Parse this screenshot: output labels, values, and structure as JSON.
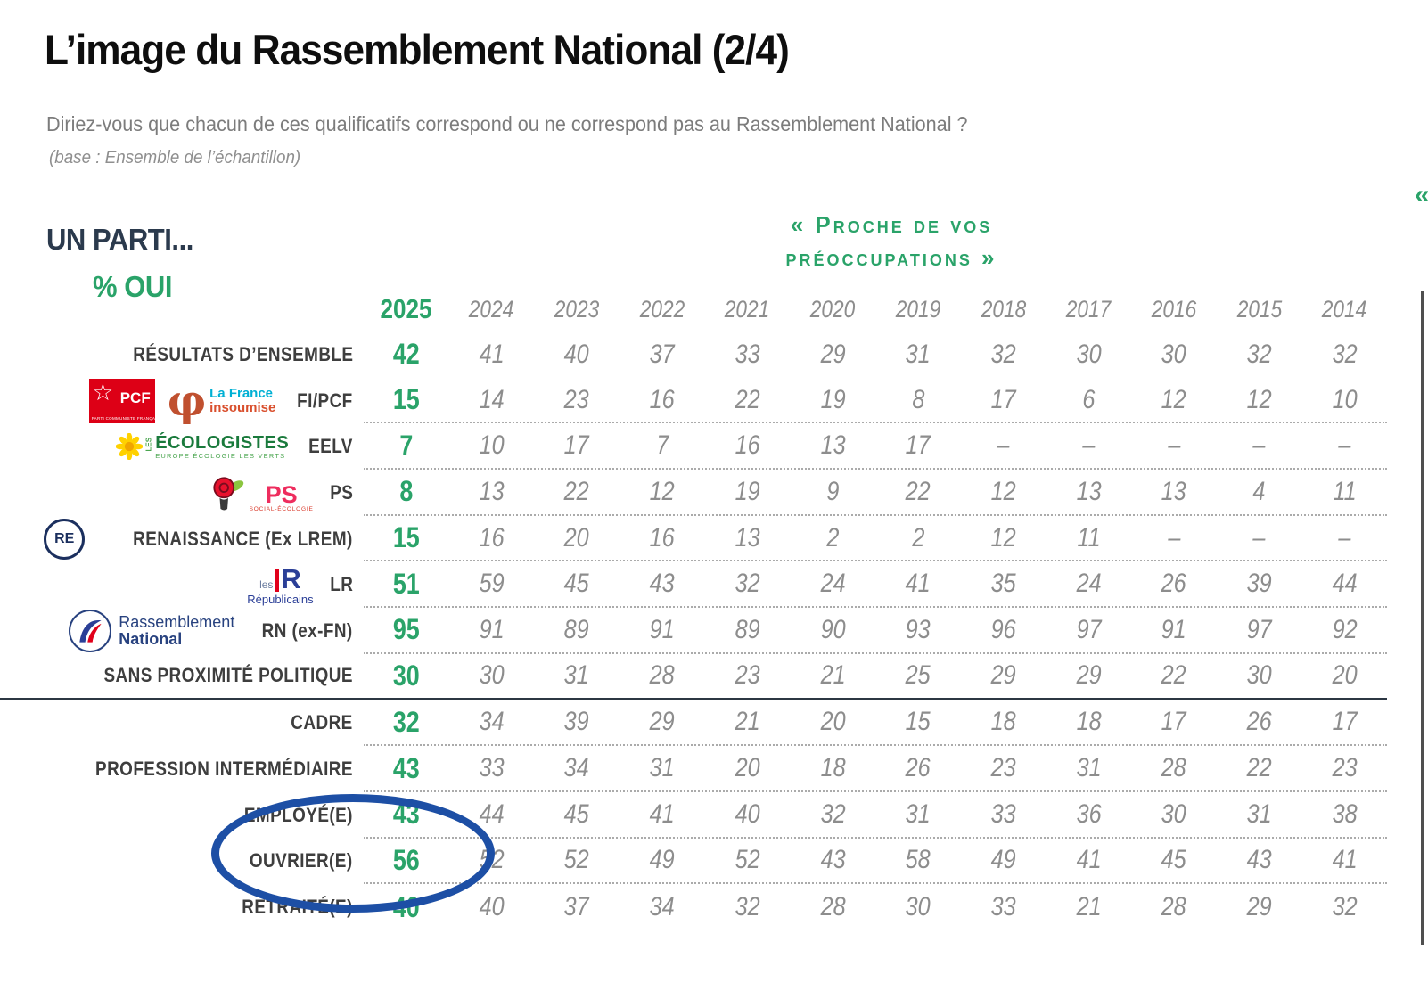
{
  "header": {
    "title": "L’image du Rassemblement National (2/4)",
    "subtitle": "Diriez-vous que chacun de ces qualificatifs correspond ou ne correspond pas au Rassemblement National ?",
    "base_note": "(base : Ensemble de l’échantillon)"
  },
  "panel": {
    "left_label": "UN PARTI...",
    "unit_label": "% OUI",
    "quote_line1": "« Proche de vos",
    "quote_line2": "préoccupations »",
    "next_panel_quote_marker": "«"
  },
  "colors": {
    "accent_green": "#2aa369",
    "value_gray": "#8d8d8d",
    "label_dark": "#3e3e3e",
    "navy": "#2b3a4d",
    "highlight_blue": "#1d4fa5"
  },
  "logos": {
    "pcf": {
      "star": "☆",
      "name": "PCF",
      "sub": "PARTI COMMUNISTE FRANÇAIS"
    },
    "lfi": {
      "phi": "φ",
      "line1": "La France",
      "line2": "insoumise"
    },
    "ecologistes": {
      "les": "LES",
      "name": "ÉCOLOGISTES",
      "sub": "EUROPE ÉCOLOGIE LES VERTS"
    },
    "ps": {
      "name": "PS",
      "sub": "SOCIAL-ÉCOLOGIE"
    },
    "re": {
      "name": "RE"
    },
    "lr": {
      "les": "les",
      "r": "R",
      "name": "Républicains"
    },
    "rn": {
      "line1": "Rassemblement",
      "line2": "National"
    }
  },
  "chart_data": {
    "type": "table",
    "title": "L’image du Rassemblement National (2/4)",
    "question": "Diriez-vous que chacun de ces qualificatifs correspond ou ne correspond pas au Rassemblement National ?",
    "item": "« Proche de vos préoccupations »",
    "unit": "% OUI",
    "columns": [
      "2025",
      "2024",
      "2023",
      "2022",
      "2021",
      "2020",
      "2019",
      "2018",
      "2017",
      "2016",
      "2015",
      "2014"
    ],
    "highlighted_rows": [
      "EMPLOYÉ(E)",
      "OUVRIER(E)"
    ],
    "rows": [
      {
        "label": "RÉSULTATS D’ENSEMBLE",
        "logo": null,
        "sep": "none",
        "values": [
          42,
          41,
          40,
          37,
          33,
          29,
          31,
          32,
          30,
          30,
          32,
          32
        ]
      },
      {
        "label": "FI/PCF",
        "logo": "pcf-lfi",
        "sep": "dotted",
        "values": [
          15,
          14,
          23,
          16,
          22,
          19,
          8,
          17,
          6,
          12,
          12,
          10
        ]
      },
      {
        "label": "EELV",
        "logo": "ecologistes",
        "sep": "dotted",
        "values": [
          7,
          10,
          17,
          7,
          16,
          13,
          17,
          "–",
          "–",
          "–",
          "–",
          "–"
        ]
      },
      {
        "label": "PS",
        "logo": "ps",
        "sep": "dotted",
        "values": [
          8,
          13,
          22,
          12,
          19,
          9,
          22,
          12,
          13,
          13,
          4,
          11
        ]
      },
      {
        "label": "RENAISSANCE (Ex LREM)",
        "logo": "re",
        "sep": "dotted",
        "values": [
          15,
          16,
          20,
          16,
          13,
          2,
          2,
          12,
          11,
          "–",
          "–",
          "–"
        ]
      },
      {
        "label": "LR",
        "logo": "lr",
        "sep": "dotted",
        "values": [
          51,
          59,
          45,
          43,
          32,
          24,
          41,
          35,
          24,
          26,
          39,
          44
        ]
      },
      {
        "label": "RN (ex-FN)",
        "logo": "rn",
        "sep": "dotted",
        "values": [
          95,
          91,
          89,
          91,
          89,
          90,
          93,
          96,
          97,
          91,
          97,
          92
        ]
      },
      {
        "label": "SANS PROXIMITÉ POLITIQUE",
        "logo": null,
        "sep": "solid",
        "values": [
          30,
          30,
          31,
          28,
          23,
          21,
          25,
          29,
          29,
          22,
          30,
          20
        ]
      },
      {
        "label": "CADRE",
        "logo": null,
        "sep": "dotted",
        "values": [
          32,
          34,
          39,
          29,
          21,
          20,
          15,
          18,
          18,
          17,
          26,
          17
        ]
      },
      {
        "label": "PROFESSION INTERMÉDIAIRE",
        "logo": null,
        "sep": "dotted",
        "values": [
          43,
          33,
          34,
          31,
          20,
          18,
          26,
          23,
          31,
          28,
          22,
          23
        ]
      },
      {
        "label": "EMPLOYÉ(E)",
        "logo": null,
        "sep": "dotted",
        "values": [
          43,
          44,
          45,
          41,
          40,
          32,
          31,
          33,
          36,
          30,
          31,
          38
        ]
      },
      {
        "label": "OUVRIER(E)",
        "logo": null,
        "sep": "dotted",
        "values": [
          56,
          52,
          52,
          49,
          52,
          43,
          58,
          49,
          41,
          45,
          43,
          41
        ]
      },
      {
        "label": "RETRAITÉ(E)",
        "logo": null,
        "sep": "none",
        "values": [
          40,
          40,
          37,
          34,
          32,
          28,
          30,
          33,
          21,
          28,
          29,
          32
        ]
      }
    ]
  }
}
